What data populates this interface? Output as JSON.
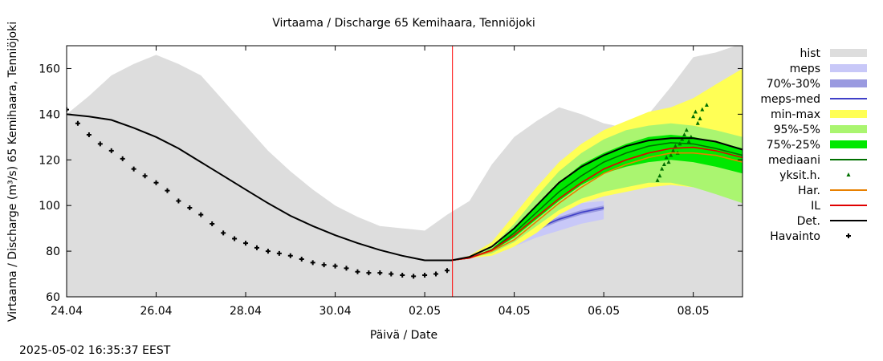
{
  "chart_data": {
    "type": "line",
    "title": "Virtaama / Discharge  65 Kemihaara, Tenniöjoki",
    "xlabel": "Päivä / Date",
    "ylabel": "Virtaama / Discharge (m³/s)  65 Kemihaara, Tenniöjoki",
    "ylim": [
      60,
      170
    ],
    "xlim": [
      0,
      15.1
    ],
    "x_ticks": [
      {
        "x": 0,
        "label": "24.04"
      },
      {
        "x": 2,
        "label": "26.04"
      },
      {
        "x": 4,
        "label": "28.04"
      },
      {
        "x": 6,
        "label": "30.04"
      },
      {
        "x": 8,
        "label": "02.05"
      },
      {
        "x": 10,
        "label": "04.05"
      },
      {
        "x": 12,
        "label": "06.05"
      },
      {
        "x": 14,
        "label": "08.05"
      }
    ],
    "y_ticks": [
      60,
      80,
      100,
      120,
      140,
      160
    ],
    "forecast_start_x": 8.62,
    "legend_position": "right",
    "series": [
      {
        "name": "hist",
        "kind": "band",
        "color": "#dddddd",
        "x": [
          0,
          0.5,
          1,
          1.5,
          2,
          2.5,
          3,
          3.5,
          4,
          4.5,
          5,
          5.5,
          6,
          6.5,
          7,
          7.5,
          8,
          8.5,
          9,
          9.5,
          10,
          10.5,
          11,
          11.5,
          12,
          12.5,
          13,
          13.5,
          14,
          14.5,
          15.1
        ],
        "low": [
          60,
          60,
          60,
          60,
          60,
          60,
          60,
          60,
          60,
          60,
          60,
          60,
          60,
          60,
          60,
          60,
          60,
          60,
          60,
          60,
          60,
          60,
          60,
          60,
          60,
          60,
          60,
          60,
          60,
          60,
          60
        ],
        "high": [
          140,
          148,
          157,
          162,
          166,
          162,
          157,
          146,
          135,
          124,
          115,
          107,
          100,
          95,
          91,
          90,
          89,
          96,
          102,
          118,
          130,
          137,
          143,
          140,
          136,
          134,
          140,
          152,
          165,
          167,
          171
        ]
      },
      {
        "name": "meps",
        "kind": "band",
        "color": "#c8c8f8",
        "x": [
          8.6,
          9,
          9.5,
          10,
          10.5,
          11,
          11.5,
          12
        ],
        "low": [
          76,
          77,
          79,
          82,
          86,
          89,
          92,
          94
        ],
        "high": [
          76,
          77,
          81,
          88,
          94,
          98,
          101,
          102
        ]
      },
      {
        "name": "70%-30%",
        "kind": "band",
        "color": "#9a9ae0",
        "x": [
          8.6,
          9,
          9.5,
          10,
          10.5,
          11,
          11.5,
          12
        ],
        "low": [
          76,
          77,
          80,
          84,
          89,
          93,
          96,
          98
        ],
        "high": [
          76,
          77,
          81,
          86,
          91,
          95,
          98,
          100
        ]
      },
      {
        "name": "meps-med",
        "kind": "line",
        "color": "#4040c8",
        "x": [
          8.6,
          9,
          9.5,
          10,
          10.5,
          11,
          11.5,
          12
        ],
        "y": [
          76,
          77,
          80.5,
          85,
          90,
          94,
          97,
          99
        ]
      },
      {
        "name": "min-max",
        "kind": "band",
        "color": "#ffff55",
        "x": [
          8.6,
          9,
          9.5,
          10,
          10.5,
          11,
          11.5,
          12,
          12.5,
          13,
          13.5,
          14,
          14.5,
          15.1
        ],
        "low": [
          76,
          77,
          78,
          82,
          88,
          96,
          101,
          104,
          106,
          108,
          109,
          108,
          106,
          102
        ],
        "high": [
          76,
          78,
          84,
          96,
          108,
          119,
          127,
          133,
          137,
          141,
          143,
          147,
          153,
          160
        ]
      },
      {
        "name": "95%-5%",
        "kind": "band",
        "color": "#aaf570",
        "x": [
          8.6,
          9,
          9.5,
          10,
          10.5,
          11,
          11.5,
          12,
          12.5,
          13,
          13.5,
          14,
          14.5,
          15.1
        ],
        "low": [
          76,
          77,
          79,
          84,
          91,
          98,
          103,
          106,
          108,
          110,
          110,
          108,
          105,
          101
        ],
        "high": [
          76,
          77,
          82,
          92,
          104,
          115,
          123,
          129,
          133,
          135,
          136,
          135,
          133,
          130
        ]
      },
      {
        "name": "75%-25%",
        "kind": "band",
        "color": "#00e800",
        "x": [
          8.6,
          9,
          9.5,
          10,
          10.5,
          11,
          11.5,
          12,
          12.5,
          13,
          13.5,
          14,
          14.5,
          15.1
        ],
        "low": [
          76,
          77,
          80,
          86,
          94,
          102,
          109,
          114,
          117,
          119,
          120,
          119,
          117,
          114
        ],
        "high": [
          76,
          77,
          81,
          90,
          100,
          110,
          118,
          123,
          127,
          130,
          131,
          130,
          128,
          125
        ]
      },
      {
        "name": "mediaani",
        "kind": "line",
        "color": "#007000",
        "x": [
          8.6,
          9,
          9.5,
          10,
          10.5,
          11,
          11.5,
          12,
          12.5,
          13,
          13.5,
          14,
          14.5,
          15.1
        ],
        "y": [
          76,
          77,
          80.5,
          88,
          97,
          106,
          113,
          119,
          123,
          126,
          127.5,
          127,
          125,
          122
        ]
      },
      {
        "name": "yksit.h.",
        "kind": "points",
        "color": "#007000",
        "x": [
          13.2,
          13.25,
          13.3,
          13.35,
          13.4,
          13.45,
          13.5,
          13.55,
          13.6,
          13.65,
          13.7,
          13.75,
          13.8,
          13.85,
          13.9,
          13.95,
          14.0,
          14.05,
          14.1,
          14.15,
          14.2,
          14.3
        ],
        "y": [
          111,
          113,
          116,
          118,
          121,
          119,
          122,
          124,
          126,
          123,
          127,
          129,
          131,
          133,
          128,
          130,
          139,
          141,
          136,
          138,
          142,
          144
        ]
      },
      {
        "name": "Har.",
        "kind": "line",
        "color": "#e88000",
        "x": [
          8.6,
          9,
          9.5,
          10,
          10.5,
          11,
          11.5,
          12,
          12.5,
          13,
          13.5,
          14,
          14.5,
          15.1
        ],
        "y": [
          76,
          77,
          80,
          85,
          93,
          101,
          108,
          114,
          118,
          121,
          123,
          123,
          122,
          119
        ]
      },
      {
        "name": "IL",
        "kind": "line",
        "color": "#e00000",
        "x": [
          8.6,
          9,
          9.5,
          10,
          10.5,
          11,
          11.5,
          12,
          12.5,
          13,
          13.5,
          14,
          14.5,
          15.1
        ],
        "y": [
          76,
          77,
          80.5,
          87,
          95,
          103,
          110,
          116,
          120,
          123,
          125,
          125.5,
          124,
          121
        ]
      },
      {
        "name": "Det.",
        "kind": "line",
        "color": "#000000",
        "x": [
          0,
          0.5,
          1,
          1.5,
          2,
          2.5,
          3,
          3.5,
          4,
          4.5,
          5,
          5.5,
          6,
          6.5,
          7,
          7.5,
          8,
          8.5,
          8.6,
          9,
          9.5,
          10,
          10.5,
          11,
          11.5,
          12,
          12.5,
          13,
          13.5,
          14,
          14.5,
          15.1
        ],
        "y": [
          140,
          139,
          137.5,
          134,
          130,
          125,
          119,
          113,
          107,
          101,
          95.5,
          91,
          87,
          83.5,
          80.5,
          78,
          76,
          76,
          76,
          77.5,
          82,
          90,
          100,
          110,
          117,
          122,
          126,
          128.5,
          129.5,
          129.5,
          128,
          124.5
        ]
      },
      {
        "name": "Havainto",
        "kind": "markers",
        "color": "#000000",
        "x": [
          0,
          0.25,
          0.5,
          0.75,
          1,
          1.25,
          1.5,
          1.75,
          2,
          2.25,
          2.5,
          2.75,
          3,
          3.25,
          3.5,
          3.75,
          4,
          4.25,
          4.5,
          4.75,
          5,
          5.25,
          5.5,
          5.75,
          6,
          6.25,
          6.5,
          6.75,
          7,
          7.25,
          7.5,
          7.75,
          8,
          8.25,
          8.5
        ],
        "y": [
          142,
          136,
          131,
          127,
          124,
          120.5,
          116,
          113,
          110,
          106.5,
          102,
          99,
          96,
          92,
          88,
          85.5,
          83.5,
          81.5,
          80,
          79,
          78,
          76.5,
          75,
          74,
          73.5,
          72.5,
          71,
          70.5,
          70.5,
          70,
          69.5,
          69,
          69.5,
          70,
          71.5
        ]
      }
    ]
  },
  "timestamp": "2025-05-02 16:35:37 EEST"
}
